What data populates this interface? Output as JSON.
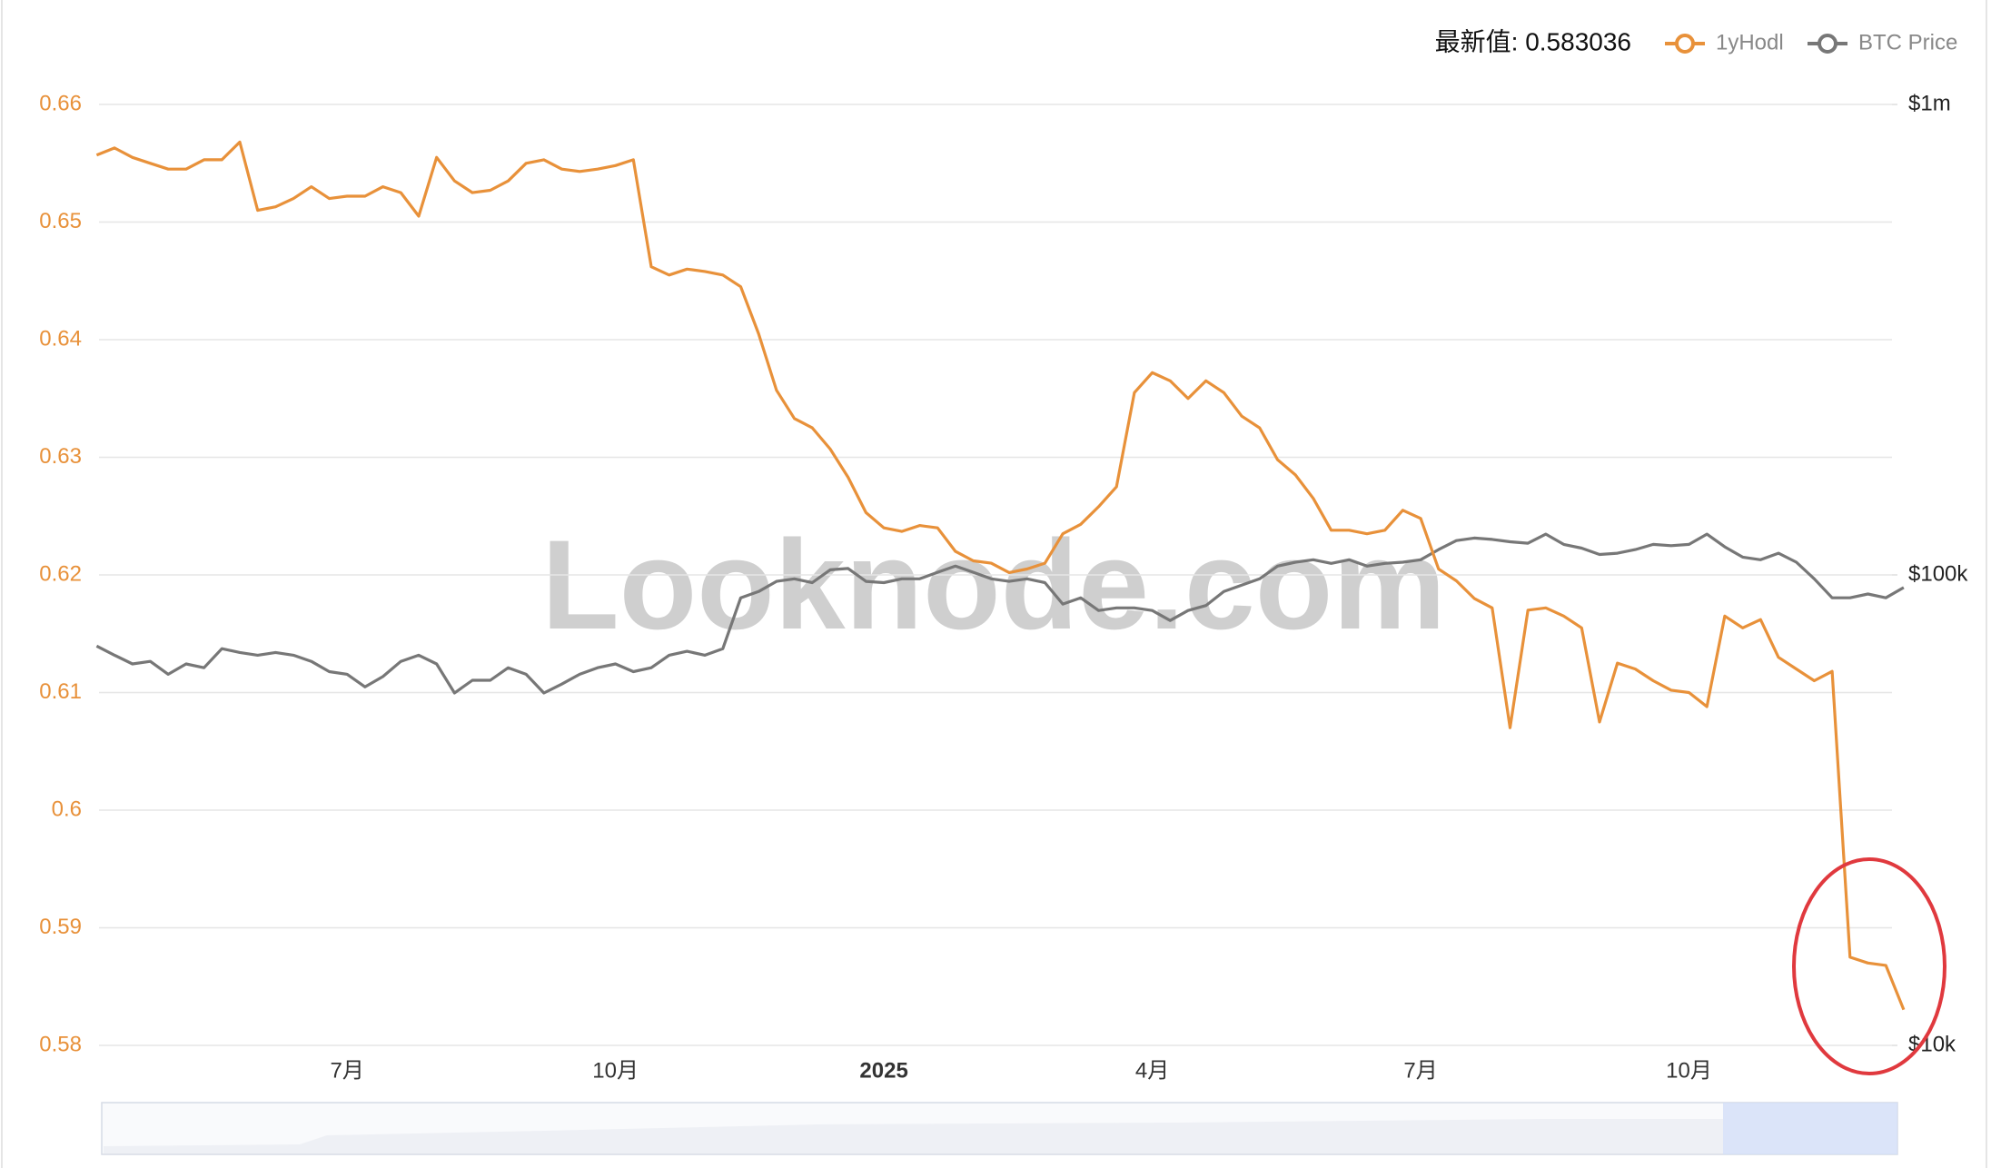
{
  "chart_data": {
    "type": "line",
    "watermark": "Looknode.com",
    "latest_label": "最新值: 0.583036",
    "categories": [
      null,
      null,
      null,
      null,
      null,
      null,
      null,
      null,
      null,
      null,
      null,
      null,
      null,
      null,
      "7月",
      null,
      null,
      null,
      null,
      null,
      null,
      null,
      null,
      null,
      null,
      null,
      null,
      null,
      null,
      "10月",
      null,
      null,
      null,
      null,
      null,
      null,
      null,
      null,
      null,
      null,
      null,
      null,
      null,
      null,
      "2025",
      null,
      null,
      null,
      null,
      null,
      null,
      null,
      null,
      null,
      null,
      null,
      null,
      null,
      null,
      "4月",
      null,
      null,
      null,
      null,
      null,
      null,
      null,
      null,
      null,
      null,
      null,
      null,
      null,
      null,
      "7月",
      null,
      null,
      null,
      null,
      null,
      null,
      null,
      null,
      null,
      null,
      null,
      null,
      null,
      null,
      "10月",
      null,
      null,
      null,
      null,
      null,
      null,
      null,
      null,
      null,
      null,
      null,
      null
    ],
    "series": [
      {
        "name": "1yHodl",
        "color": "#e8913a",
        "values": [
          0.6557,
          0.6563,
          0.6555,
          0.655,
          0.6545,
          0.6545,
          0.6553,
          0.6553,
          0.6568,
          0.651,
          0.6513,
          0.652,
          0.653,
          0.652,
          0.6522,
          0.6522,
          0.653,
          0.6525,
          0.6505,
          0.6555,
          0.6535,
          0.6525,
          0.6527,
          0.6535,
          0.655,
          0.6553,
          0.6545,
          0.6543,
          0.6545,
          0.6548,
          0.6553,
          0.6462,
          0.6455,
          0.646,
          0.6458,
          0.6455,
          0.6445,
          0.6405,
          0.6357,
          0.6333,
          0.6325,
          0.6307,
          0.6283,
          0.6253,
          0.624,
          0.6237,
          0.6242,
          0.624,
          0.622,
          0.6212,
          0.621,
          0.6202,
          0.6205,
          0.621,
          0.6235,
          0.6243,
          0.6258,
          0.6275,
          0.6355,
          0.6372,
          0.6365,
          0.635,
          0.6365,
          0.6355,
          0.6335,
          0.6325,
          0.6298,
          0.6285,
          0.6265,
          0.6238,
          0.6238,
          0.6235,
          0.6238,
          0.6255,
          0.6248,
          0.6205,
          0.6195,
          0.618,
          0.6172,
          0.607,
          0.617,
          0.6172,
          0.6165,
          0.6155,
          0.6075,
          0.6125,
          0.612,
          0.611,
          0.6102,
          0.61,
          0.6088,
          0.6165,
          0.6155,
          0.6162,
          0.613,
          0.612,
          0.611,
          0.6118,
          0.5875,
          0.587,
          0.5868,
          0.583036
        ]
      },
      {
        "name": "BTC Price",
        "color": "#777777",
        "axis": "y2",
        "values": [
          70600,
          67500,
          64700,
          65500,
          61500,
          64700,
          63500,
          69700,
          68400,
          67500,
          68400,
          67500,
          65500,
          62300,
          61500,
          57800,
          60800,
          65500,
          67500,
          64700,
          56100,
          59700,
          59700,
          63500,
          61500,
          56100,
          58600,
          61500,
          63500,
          64700,
          62300,
          63500,
          67500,
          68800,
          67500,
          69700,
          89400,
          92200,
          96900,
          98100,
          96300,
          102500,
          103200,
          96900,
          96300,
          98100,
          98100,
          101300,
          104400,
          101300,
          98100,
          96900,
          98100,
          96300,
          86700,
          89400,
          84000,
          85100,
          85100,
          84000,
          80000,
          84000,
          86100,
          92200,
          95100,
          98100,
          104400,
          106400,
          107700,
          105800,
          107700,
          104400,
          105800,
          106400,
          107700,
          113200,
          118300,
          119800,
          119000,
          117600,
          116800,
          122100,
          116100,
          114000,
          110500,
          111200,
          113200,
          116100,
          115400,
          116100,
          122100,
          114700,
          109100,
          107700,
          111200,
          106400,
          98100,
          89400,
          89400,
          91100,
          89400,
          94000
        ]
      }
    ],
    "ylim": [
      0.58,
      0.66
    ],
    "yticks": [
      0.58,
      0.59,
      0.6,
      0.61,
      0.62,
      0.63,
      0.64,
      0.65,
      0.66
    ],
    "y2lim": [
      10000,
      1000000
    ],
    "y2log": true,
    "y2ticks": [
      {
        "value": 10000,
        "label": "$10k"
      },
      {
        "value": 100000,
        "label": "$100k"
      },
      {
        "value": 1000000,
        "label": "$1m"
      }
    ],
    "grid": true,
    "legend": "top-right"
  }
}
